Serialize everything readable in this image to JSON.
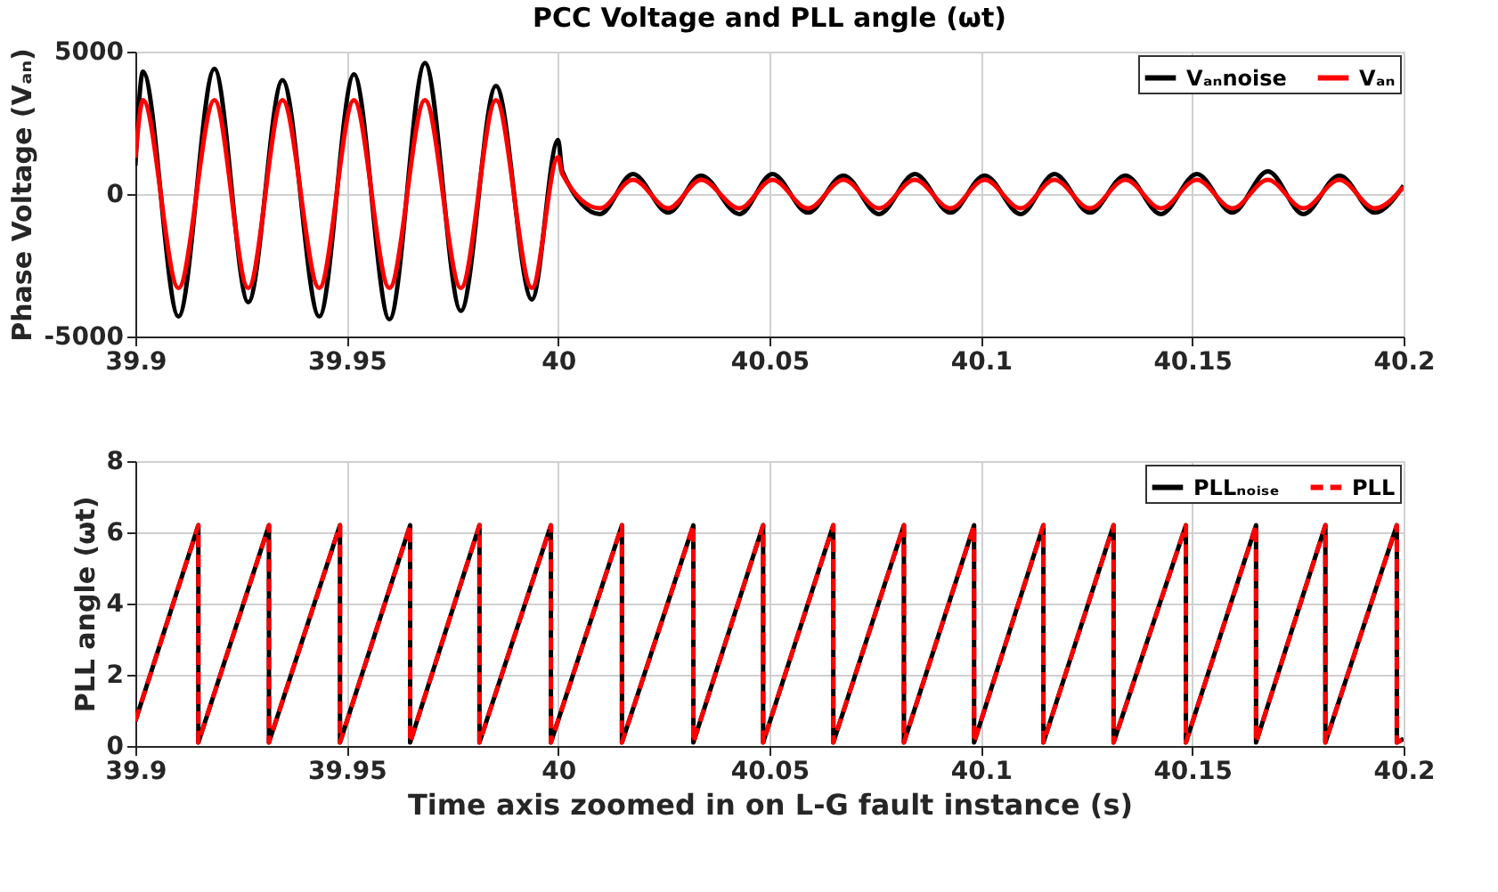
{
  "chart_data": [
    {
      "type": "line",
      "title": "PCC Voltage and PLL angle (ωt)",
      "ylabel": "Phase Voltage (Vₐₙ)",
      "xlim": [
        39.9,
        40.2
      ],
      "xticks": [
        39.9,
        39.95,
        40,
        40.05,
        40.1,
        40.15,
        40.2
      ],
      "ylim": [
        -5000,
        5000
      ],
      "yticks": [
        -5000,
        0,
        5000
      ],
      "grid": true,
      "legend": "top right",
      "tick_labels": "xy",
      "series": [
        {
          "name": "Vₐₙnoise",
          "color": "#000000",
          "line_style": "solid",
          "x": [
            39.9,
            39.9018,
            39.9102,
            39.9187,
            39.9267,
            39.9348,
            39.9435,
            39.9517,
            39.9601,
            39.9685,
            39.977,
            39.9853,
            39.9938,
            40.0,
            40.001,
            40.0099,
            40.0177,
            40.0261,
            40.0338,
            40.0429,
            40.0507,
            40.0591,
            40.0675,
            40.0759,
            40.0844,
            40.0928,
            40.1009,
            40.1094,
            40.1174,
            40.1258,
            40.1342,
            40.1426,
            40.1511,
            40.1595,
            40.1679,
            40.1763,
            40.1848,
            40.1932,
            40.2
          ],
          "values": [
            1000,
            4300,
            -4300,
            4400,
            -3800,
            4000,
            -4300,
            4200,
            -4400,
            4600,
            -4100,
            3800,
            -3700,
            1900,
            800,
            -700,
            700,
            -650,
            650,
            -700,
            700,
            -650,
            650,
            -700,
            700,
            -650,
            650,
            -700,
            700,
            -650,
            650,
            -700,
            700,
            -650,
            800,
            -700,
            650,
            -650,
            300
          ]
        },
        {
          "name": "Vₐₙ",
          "color": "#ff0000",
          "line_style": "solid",
          "x": [
            39.9,
            39.9018,
            39.9102,
            39.9187,
            39.9267,
            39.9348,
            39.9435,
            39.9517,
            39.9601,
            39.9685,
            39.977,
            39.9853,
            39.9938,
            40.0,
            40.001,
            40.0099,
            40.0177,
            40.0261,
            40.0338,
            40.0429,
            40.0507,
            40.0591,
            40.0675,
            40.0759,
            40.0844,
            40.0928,
            40.1009,
            40.1094,
            40.1174,
            40.1258,
            40.1342,
            40.1426,
            40.1511,
            40.1595,
            40.1679,
            40.1763,
            40.1848,
            40.1932,
            40.2
          ],
          "values": [
            1270,
            3300,
            -3300,
            3300,
            -3300,
            3300,
            -3300,
            3300,
            -3300,
            3300,
            -3300,
            3300,
            -3300,
            1300,
            700,
            -500,
            500,
            -500,
            500,
            -500,
            500,
            -500,
            500,
            -500,
            500,
            -500,
            500,
            -500,
            500,
            -500,
            500,
            -500,
            500,
            -500,
            500,
            -500,
            500,
            -500,
            250
          ]
        }
      ]
    },
    {
      "type": "line",
      "ylabel": "PLL angle (ωt)",
      "xlabel": "Time axis zoomed in on L-G fault instance (s)",
      "xlim": [
        39.9,
        40.2
      ],
      "xticks": [
        39.9,
        39.95,
        40,
        40.05,
        40.1,
        40.15,
        40.2
      ],
      "ylim": [
        0,
        8
      ],
      "yticks": [
        0,
        2,
        4,
        6,
        8
      ],
      "grid": true,
      "legend": "top right",
      "series": [
        {
          "name": "PLLₙₒᵢₛₑ",
          "color": "#000000",
          "line_style": "solid",
          "x": [
            39.9,
            39.9149,
            39.9149,
            39.9316,
            39.9316,
            39.9484,
            39.9484,
            39.965,
            39.965,
            39.9814,
            39.9814,
            39.9983,
            39.9983,
            40.0151,
            40.0151,
            40.032,
            40.032,
            40.0485,
            40.0485,
            40.0651,
            40.0651,
            40.0818,
            40.0818,
            40.0984,
            40.0984,
            40.1148,
            40.1148,
            40.1314,
            40.1314,
            40.1485,
            40.1485,
            40.1651,
            40.1651,
            40.1815,
            40.1815,
            40.1984,
            40.1984,
            40.2
          ],
          "values": [
            0.7,
            6.2,
            0.1,
            6.2,
            0.1,
            6.2,
            0.1,
            6.2,
            0.1,
            6.2,
            0.1,
            6.2,
            0.1,
            6.2,
            0.1,
            6.2,
            0.1,
            6.2,
            0.1,
            6.2,
            0.1,
            6.2,
            0.1,
            6.2,
            0.1,
            6.2,
            0.1,
            6.2,
            0.1,
            6.2,
            0.1,
            6.2,
            0.1,
            6.2,
            0.1,
            6.2,
            0.1,
            0.2
          ]
        },
        {
          "name": "PLL",
          "color": "#ff0000",
          "line_style": "dashed",
          "x": [
            39.9,
            39.9149,
            39.9149,
            39.9316,
            39.9316,
            39.9484,
            39.9484,
            39.965,
            39.965,
            39.9814,
            39.9814,
            39.9983,
            39.9983,
            40.0151,
            40.0151,
            40.032,
            40.032,
            40.0485,
            40.0485,
            40.0651,
            40.0651,
            40.0818,
            40.0818,
            40.0984,
            40.0984,
            40.1148,
            40.1148,
            40.1314,
            40.1314,
            40.1485,
            40.1485,
            40.1651,
            40.1651,
            40.1815,
            40.1815,
            40.1984,
            40.1984,
            40.2
          ],
          "values": [
            0.7,
            6.2,
            0.1,
            6.2,
            0.1,
            6.2,
            0.1,
            6.2,
            0.1,
            6.2,
            0.1,
            6.2,
            0.1,
            6.2,
            0.1,
            6.2,
            0.1,
            6.2,
            0.1,
            6.2,
            0.1,
            6.2,
            0.1,
            6.2,
            0.1,
            6.2,
            0.1,
            6.2,
            0.1,
            6.2,
            0.1,
            6.2,
            0.1,
            6.2,
            0.1,
            6.2,
            0.1,
            0.2
          ]
        }
      ]
    }
  ]
}
